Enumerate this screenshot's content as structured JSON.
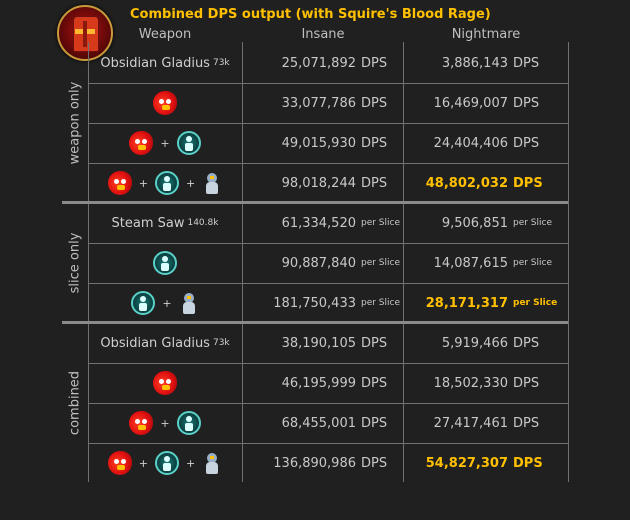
{
  "title": "Combined DPS output (with Squire's Blood Rage)",
  "columns": {
    "weapon": "Weapon",
    "insane": "Insane",
    "nightmare": "Nightmare"
  },
  "groups": [
    {
      "label": "weapon only",
      "rows": [
        {
          "weapon": {
            "name": "Obsidian Gladius",
            "sub": "73k"
          },
          "insane": "25,071,892",
          "insane_unit": "DPS",
          "nightmare": "3,886,143",
          "nightmare_unit": "DPS"
        },
        {
          "icons": [
            "rage-icon"
          ],
          "insane": "33,077,786",
          "insane_unit": "DPS",
          "nightmare": "16,469,007",
          "nightmare_unit": "DPS"
        },
        {
          "icons": [
            "rage-icon",
            "buff-icon"
          ],
          "insane": "49,015,930",
          "insane_unit": "DPS",
          "nightmare": "24,404,406",
          "nightmare_unit": "DPS"
        },
        {
          "icons": [
            "rage-icon",
            "buff-icon",
            "pet-icon"
          ],
          "insane": "98,018,244",
          "insane_unit": "DPS",
          "nightmare": "48,802,032",
          "nightmare_unit": "DPS",
          "highlight": true
        }
      ]
    },
    {
      "label": "slice only",
      "rows": [
        {
          "weapon": {
            "name": "Steam Saw",
            "sub": "140.8k"
          },
          "insane": "61,334,520",
          "insane_unit": "per Slice",
          "nightmare": "9,506,851",
          "nightmare_unit": "per Slice"
        },
        {
          "icons": [
            "buff-icon"
          ],
          "insane": "90,887,840",
          "insane_unit": "per Slice",
          "nightmare": "14,087,615",
          "nightmare_unit": "per Slice"
        },
        {
          "icons": [
            "buff-icon",
            "pet-icon"
          ],
          "insane": "181,750,433",
          "insane_unit": "per Slice",
          "nightmare": "28,171,317",
          "nightmare_unit": "per Slice",
          "highlight": true
        }
      ]
    },
    {
      "label": "combined",
      "rows": [
        {
          "weapon": {
            "name": "Obsidian Gladius",
            "sub": "73k"
          },
          "insane": "38,190,105",
          "insane_unit": "DPS",
          "nightmare": "5,919,466",
          "nightmare_unit": "DPS"
        },
        {
          "icons": [
            "rage-icon"
          ],
          "insane": "46,195,999",
          "insane_unit": "DPS",
          "nightmare": "18,502,330",
          "nightmare_unit": "DPS"
        },
        {
          "icons": [
            "rage-icon",
            "buff-icon"
          ],
          "insane": "68,455,001",
          "insane_unit": "DPS",
          "nightmare": "27,417,461",
          "nightmare_unit": "DPS"
        },
        {
          "icons": [
            "rage-icon",
            "buff-icon",
            "pet-icon"
          ],
          "insane": "136,890,986",
          "insane_unit": "DPS",
          "nightmare": "54,827,307",
          "nightmare_unit": "DPS",
          "highlight": true
        }
      ]
    }
  ],
  "plus_symbol": "+",
  "colors": {
    "highlight": "#ffc000",
    "text": "#c8c8c8",
    "background": "#202020",
    "grid": "#707070"
  }
}
